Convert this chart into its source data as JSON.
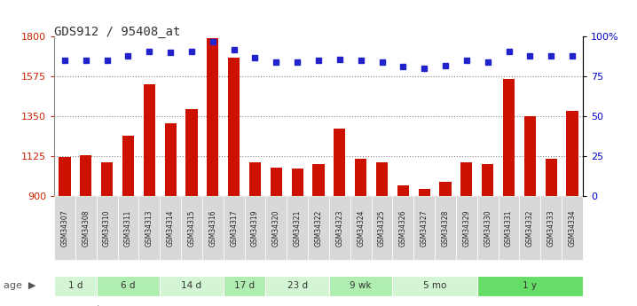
{
  "title": "GDS912 / 95408_at",
  "samples": [
    "GSM34307",
    "GSM34308",
    "GSM34310",
    "GSM34311",
    "GSM34313",
    "GSM34314",
    "GSM34315",
    "GSM34316",
    "GSM34317",
    "GSM34319",
    "GSM34320",
    "GSM34321",
    "GSM34322",
    "GSM34323",
    "GSM34324",
    "GSM34325",
    "GSM34326",
    "GSM34327",
    "GSM34328",
    "GSM34329",
    "GSM34330",
    "GSM34331",
    "GSM34332",
    "GSM34333",
    "GSM34334"
  ],
  "counts": [
    1120,
    1130,
    1090,
    1240,
    1530,
    1310,
    1390,
    1790,
    1680,
    1090,
    1060,
    1055,
    1080,
    1280,
    1110,
    1090,
    960,
    940,
    980,
    1090,
    1080,
    1560,
    1350,
    1110,
    1380
  ],
  "percentiles": [
    85,
    85,
    85,
    88,
    91,
    90,
    91,
    97,
    92,
    87,
    84,
    84,
    85,
    86,
    85,
    84,
    81,
    80,
    82,
    85,
    84,
    91,
    88,
    88,
    88
  ],
  "age_groups": [
    {
      "label": "1 d",
      "start": 0,
      "end": 2,
      "color": "#d4f5d4"
    },
    {
      "label": "6 d",
      "start": 2,
      "end": 5,
      "color": "#b0edb0"
    },
    {
      "label": "14 d",
      "start": 5,
      "end": 8,
      "color": "#d4f5d4"
    },
    {
      "label": "17 d",
      "start": 8,
      "end": 10,
      "color": "#b0edb0"
    },
    {
      "label": "23 d",
      "start": 10,
      "end": 13,
      "color": "#d4f5d4"
    },
    {
      "label": "9 wk",
      "start": 13,
      "end": 16,
      "color": "#b0edb0"
    },
    {
      "label": "5 mo",
      "start": 16,
      "end": 20,
      "color": "#d4f5d4"
    },
    {
      "label": "1 y",
      "start": 20,
      "end": 25,
      "color": "#66dd66"
    }
  ],
  "ylim_left": [
    900,
    1800
  ],
  "ylim_right": [
    0,
    100
  ],
  "yticks_left": [
    900,
    1125,
    1350,
    1575,
    1800
  ],
  "yticks_right": [
    0,
    25,
    50,
    75,
    100
  ],
  "ytick_labels_right": [
    "0",
    "25",
    "50",
    "75",
    "100%"
  ],
  "bar_color": "#cc1100",
  "dot_color": "#2222cc",
  "grid_color": "#888888",
  "bg_color": "#ffffff",
  "plot_bg": "#ffffff",
  "tick_label_color_left": "#cc2200",
  "tick_label_color_right": "#0000cc"
}
